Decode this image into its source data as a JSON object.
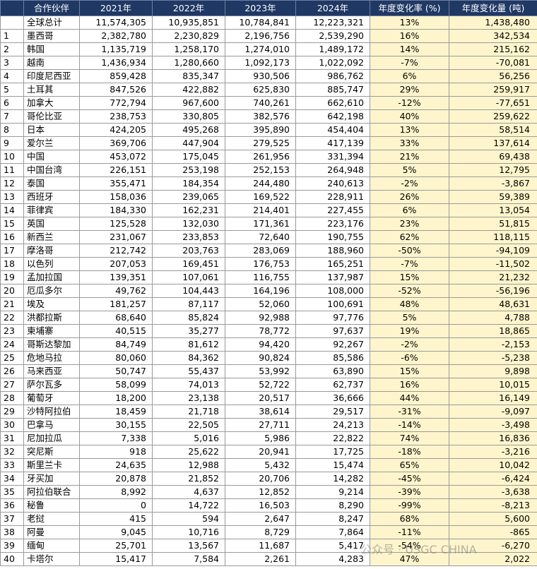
{
  "table": {
    "headers": [
      "合作伙伴",
      "2021年",
      "2022年",
      "2023年",
      "2024年",
      "年度变化率 (%)",
      "年度变化量 (吨)"
    ],
    "total": [
      "全球总计",
      "11,574,305",
      "10,935,851",
      "10,784,841",
      "12,223,321",
      "13%",
      "1,438,480"
    ],
    "rows": [
      [
        "1",
        "墨西哥",
        "2,382,780",
        "2,230,829",
        "2,196,756",
        "2,539,290",
        "16%",
        "342,534"
      ],
      [
        "2",
        "韩国",
        "1,135,719",
        "1,258,170",
        "1,274,010",
        "1,489,172",
        "14%",
        "215,162"
      ],
      [
        "3",
        "越南",
        "1,436,934",
        "1,280,660",
        "1,092,173",
        "1,022,092",
        "-7%",
        "-70,081"
      ],
      [
        "4",
        "印度尼西亚",
        "859,428",
        "835,347",
        "930,506",
        "986,762",
        "6%",
        "56,256"
      ],
      [
        "5",
        "土耳其",
        "847,526",
        "422,882",
        "625,830",
        "885,747",
        "29%",
        "259,917"
      ],
      [
        "6",
        "加拿大",
        "772,794",
        "967,600",
        "740,261",
        "662,610",
        "-12%",
        "-77,651"
      ],
      [
        "7",
        "哥伦比亚",
        "238,753",
        "330,805",
        "382,576",
        "642,198",
        "40%",
        "259,622"
      ],
      [
        "8",
        "日本",
        "424,205",
        "495,268",
        "395,890",
        "454,404",
        "13%",
        "58,514"
      ],
      [
        "9",
        "爱尔兰",
        "369,706",
        "447,904",
        "279,525",
        "417,139",
        "33%",
        "137,614"
      ],
      [
        "10",
        "中国",
        "453,072",
        "175,045",
        "261,956",
        "331,394",
        "21%",
        "69,438"
      ],
      [
        "11",
        "中国台湾",
        "226,151",
        "253,198",
        "252,153",
        "264,948",
        "5%",
        "12,795"
      ],
      [
        "12",
        "泰国",
        "355,471",
        "184,354",
        "244,480",
        "240,613",
        "-2%",
        "-3,867"
      ],
      [
        "13",
        "西班牙",
        "158,036",
        "239,065",
        "169,522",
        "228,911",
        "26%",
        "59,389"
      ],
      [
        "14",
        "菲律宾",
        "184,330",
        "162,231",
        "214,401",
        "227,455",
        "6%",
        "13,054"
      ],
      [
        "15",
        "英国",
        "125,528",
        "132,030",
        "171,361",
        "223,176",
        "23%",
        "51,815"
      ],
      [
        "16",
        "新西兰",
        "231,067",
        "233,853",
        "72,640",
        "190,755",
        "62%",
        "118,115"
      ],
      [
        "17",
        "摩洛哥",
        "212,742",
        "203,763",
        "283,069",
        "188,960",
        "-50%",
        "-94,109"
      ],
      [
        "18",
        "以色列",
        "207,053",
        "169,451",
        "176,753",
        "165,251",
        "-7%",
        "-11,502"
      ],
      [
        "19",
        "孟加拉国",
        "139,351",
        "107,061",
        "116,755",
        "137,987",
        "15%",
        "21,232"
      ],
      [
        "20",
        "厄瓜多尔",
        "49,762",
        "104,443",
        "164,196",
        "108,000",
        "-52%",
        "-56,196"
      ],
      [
        "21",
        "埃及",
        "181,257",
        "87,117",
        "52,060",
        "100,691",
        "48%",
        "48,631"
      ],
      [
        "22",
        "洪都拉斯",
        "68,640",
        "85,824",
        "92,988",
        "97,776",
        "5%",
        "4,788"
      ],
      [
        "23",
        "柬埔寨",
        "40,515",
        "35,277",
        "78,772",
        "97,637",
        "19%",
        "18,865"
      ],
      [
        "24",
        "哥斯达黎加",
        "84,749",
        "81,612",
        "94,420",
        "92,267",
        "-2%",
        "-2,153"
      ],
      [
        "25",
        "危地马拉",
        "80,060",
        "84,362",
        "90,824",
        "85,586",
        "-6%",
        "-5,238"
      ],
      [
        "26",
        "马来西亚",
        "50,747",
        "55,437",
        "53,992",
        "63,890",
        "15%",
        "9,898"
      ],
      [
        "27",
        "萨尔瓦多",
        "58,099",
        "74,013",
        "52,722",
        "62,737",
        "16%",
        "10,015"
      ],
      [
        "28",
        "葡萄牙",
        "18,200",
        "23,138",
        "20,517",
        "36,666",
        "44%",
        "16,149"
      ],
      [
        "29",
        "沙特阿拉伯",
        "18,459",
        "21,718",
        "38,614",
        "29,517",
        "-31%",
        "-9,097"
      ],
      [
        "30",
        "巴拿马",
        "30,155",
        "22,505",
        "27,711",
        "24,213",
        "-14%",
        "-3,498"
      ],
      [
        "31",
        "尼加拉瓜",
        "7,338",
        "5,016",
        "5,986",
        "22,822",
        "74%",
        "16,836"
      ],
      [
        "32",
        "突尼斯",
        "918",
        "25,622",
        "20,941",
        "17,725",
        "-18%",
        "-3,216"
      ],
      [
        "33",
        "斯里兰卡",
        "24,635",
        "12,988",
        "5,432",
        "15,474",
        "65%",
        "10,042"
      ],
      [
        "34",
        "牙买加",
        "20,878",
        "21,852",
        "20,706",
        "14,282",
        "-45%",
        "-6,424"
      ],
      [
        "35",
        "阿拉伯联合",
        "8,992",
        "4,637",
        "12,852",
        "9,214",
        "-39%",
        "-3,638"
      ],
      [
        "36",
        "秘鲁",
        "0",
        "14,722",
        "16,503",
        "8,290",
        "-99%",
        "-8,213"
      ],
      [
        "37",
        "老挝",
        "415",
        "594",
        "2,647",
        "8,247",
        "68%",
        "5,600"
      ],
      [
        "38",
        "阿曼",
        "9,045",
        "10,716",
        "8,729",
        "7,864",
        "-11%",
        "-865"
      ],
      [
        "39",
        "缅甸",
        "25,701",
        "13,567",
        "11,687",
        "5,417",
        "-54%",
        "-6,270"
      ],
      [
        "40",
        "卡塔尔",
        "15,417",
        "7,584",
        "2,261",
        "4,283",
        "47%",
        "2,022"
      ]
    ]
  },
  "watermark": "公众号 · USGC CHINA"
}
